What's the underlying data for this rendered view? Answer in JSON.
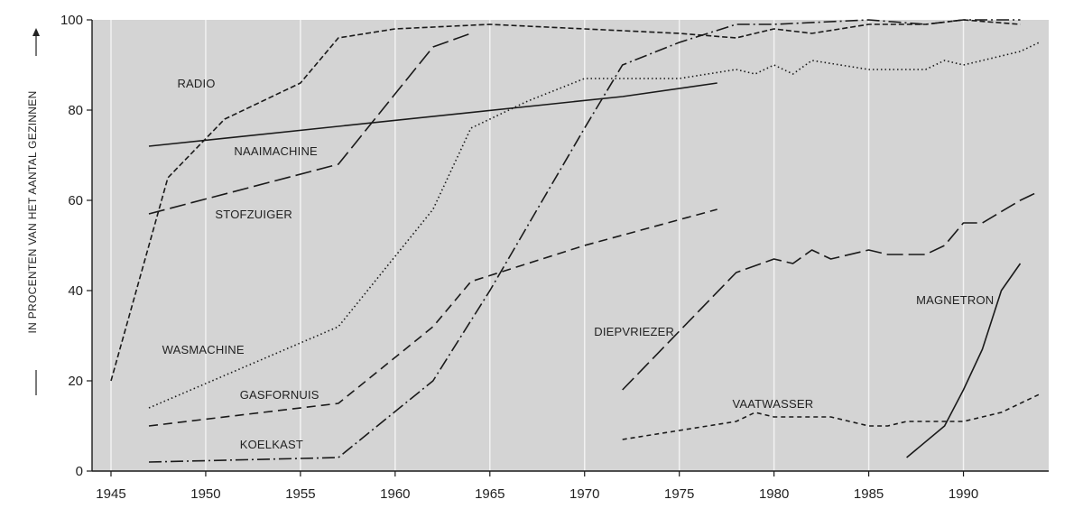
{
  "chart_data": {
    "type": "line",
    "title": "",
    "xlabel": "",
    "ylabel": "IN PROCENTEN VAN HET AANTAL GEZINNEN",
    "xlim": [
      1944,
      1994.5
    ],
    "ylim": [
      0,
      100
    ],
    "x_ticks": [
      1945,
      1950,
      1955,
      1960,
      1965,
      1970,
      1975,
      1980,
      1985,
      1990
    ],
    "y_ticks": [
      0,
      20,
      40,
      60,
      80,
      100
    ],
    "grid": "vertical",
    "background": "#d4d4d4",
    "series": [
      {
        "name": "RADIO",
        "style": "dotted-dash",
        "points": [
          [
            1945,
            20
          ],
          [
            1948,
            65
          ],
          [
            1951,
            78
          ],
          [
            1955,
            86
          ],
          [
            1957,
            96
          ],
          [
            1960,
            98
          ],
          [
            1965,
            99
          ],
          [
            1970,
            98
          ],
          [
            1975,
            97
          ],
          [
            1978,
            96
          ],
          [
            1980,
            98
          ],
          [
            1982,
            97
          ],
          [
            1985,
            99
          ],
          [
            1988,
            99
          ],
          [
            1990,
            100
          ],
          [
            1993,
            99
          ]
        ]
      },
      {
        "name": "NAAIMACHINE",
        "style": "solid",
        "points": [
          [
            1947,
            72
          ],
          [
            1972,
            83
          ],
          [
            1977,
            86
          ]
        ]
      },
      {
        "name": "STOFZUIGER",
        "style": "long-dash",
        "points": [
          [
            1947,
            57
          ],
          [
            1957,
            68
          ],
          [
            1962,
            94
          ],
          [
            1964,
            97
          ]
        ]
      },
      {
        "name": "WASMACHINE",
        "style": "dotted",
        "points": [
          [
            1947,
            14
          ],
          [
            1957,
            32
          ],
          [
            1962,
            58
          ],
          [
            1964,
            76
          ],
          [
            1967,
            82
          ],
          [
            1970,
            87
          ],
          [
            1975,
            87
          ],
          [
            1978,
            89
          ],
          [
            1979,
            88
          ],
          [
            1980,
            90
          ],
          [
            1981,
            88
          ],
          [
            1982,
            91
          ],
          [
            1985,
            89
          ],
          [
            1988,
            89
          ],
          [
            1989,
            91
          ],
          [
            1990,
            90
          ],
          [
            1993,
            93
          ],
          [
            1994,
            95
          ]
        ]
      },
      {
        "name": "GASFORNUIS",
        "style": "dashed",
        "points": [
          [
            1947,
            10
          ],
          [
            1957,
            15
          ],
          [
            1962,
            32
          ],
          [
            1964,
            42
          ],
          [
            1970,
            50
          ],
          [
            1977,
            58
          ]
        ]
      },
      {
        "name": "KOELKAST",
        "style": "dash-dot",
        "points": [
          [
            1947,
            2
          ],
          [
            1957,
            3
          ],
          [
            1962,
            20
          ],
          [
            1965,
            40
          ],
          [
            1970,
            76
          ],
          [
            1972,
            90
          ],
          [
            1975,
            95
          ],
          [
            1978,
            99
          ],
          [
            1980,
            99
          ],
          [
            1985,
            100
          ],
          [
            1988,
            99
          ],
          [
            1990,
            100
          ],
          [
            1993,
            100
          ]
        ]
      },
      {
        "name": "DIEPVRIEZER",
        "style": "long-dash",
        "points": [
          [
            1972,
            18
          ],
          [
            1975,
            31
          ],
          [
            1978,
            44
          ],
          [
            1980,
            47
          ],
          [
            1981,
            46
          ],
          [
            1982,
            49
          ],
          [
            1983,
            47
          ],
          [
            1985,
            49
          ],
          [
            1986,
            48
          ],
          [
            1988,
            48
          ],
          [
            1989,
            50
          ],
          [
            1990,
            55
          ],
          [
            1991,
            55
          ],
          [
            1993,
            60
          ],
          [
            1994,
            62
          ]
        ]
      },
      {
        "name": "VAATWASSER",
        "style": "dashed-fine",
        "points": [
          [
            1972,
            7
          ],
          [
            1978,
            11
          ],
          [
            1979,
            13
          ],
          [
            1980,
            12
          ],
          [
            1983,
            12
          ],
          [
            1985,
            10
          ],
          [
            1986,
            10
          ],
          [
            1987,
            11
          ],
          [
            1989,
            11
          ],
          [
            1990,
            11
          ],
          [
            1992,
            13
          ],
          [
            1994,
            17
          ]
        ]
      },
      {
        "name": "MAGNETRON",
        "style": "solid",
        "points": [
          [
            1987,
            3
          ],
          [
            1989,
            10
          ],
          [
            1990,
            18
          ],
          [
            1991,
            27
          ],
          [
            1992,
            40
          ],
          [
            1993,
            46
          ]
        ]
      }
    ],
    "annotations": [
      {
        "text": "RADIO",
        "x": 1948.5,
        "y": 85
      },
      {
        "text": "NAAIMACHINE",
        "x": 1951.5,
        "y": 70
      },
      {
        "text": "STOFZUIGER",
        "x": 1950.5,
        "y": 56
      },
      {
        "text": "WASMACHINE",
        "x": 1947.7,
        "y": 26
      },
      {
        "text": "GASFORNUIS",
        "x": 1951.8,
        "y": 16
      },
      {
        "text": "KOELKAST",
        "x": 1951.8,
        "y": 5
      },
      {
        "text": "DIEPVRIEZER",
        "x": 1970.5,
        "y": 30
      },
      {
        "text": "VAATWASSER",
        "x": 1977.8,
        "y": 14
      },
      {
        "text": "MAGNETRON",
        "x": 1987.5,
        "y": 37
      }
    ]
  }
}
